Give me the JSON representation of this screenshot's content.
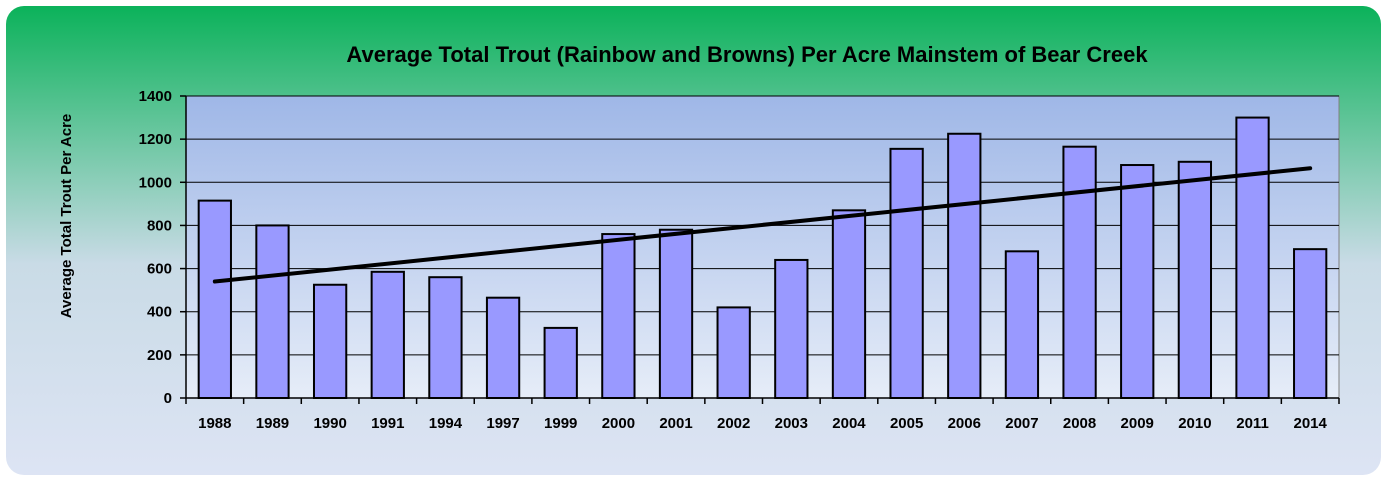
{
  "colors": {
    "bar_fill": "#9999ff",
    "bar_stroke": "#000000",
    "trend_line": "#000000",
    "frame_top": "#0bb25a",
    "frame_bottom": "#dde4f4",
    "plot_top": "#9fb7e7",
    "plot_bottom": "#e6edf8",
    "grid": "#000000"
  },
  "chart_data": {
    "type": "bar",
    "title": "Average Total Trout (Rainbow and Browns) Per Acre Mainstem of  Bear Creek",
    "xlabel": "",
    "ylabel": "Average Total Trout Per Acre",
    "ylim": [
      0,
      1400
    ],
    "yticks": [
      0,
      200,
      400,
      600,
      800,
      1000,
      1200,
      1400
    ],
    "grid": true,
    "legend": "none",
    "categories": [
      "1988",
      "1989",
      "1990",
      "1991",
      "1994",
      "1997",
      "1999",
      "2000",
      "2001",
      "2002",
      "2003",
      "2004",
      "2005",
      "2006",
      "2007",
      "2008",
      "2009",
      "2010",
      "2011",
      "2014"
    ],
    "series": [
      {
        "values": [
          915,
          800,
          525,
          585,
          560,
          465,
          325,
          760,
          780,
          420,
          640,
          870,
          1155,
          1225,
          680,
          1165,
          1080,
          1095,
          1300,
          690
        ]
      }
    ],
    "trendline": {
      "type": "linear",
      "start_value": 540,
      "end_value": 1065
    }
  }
}
